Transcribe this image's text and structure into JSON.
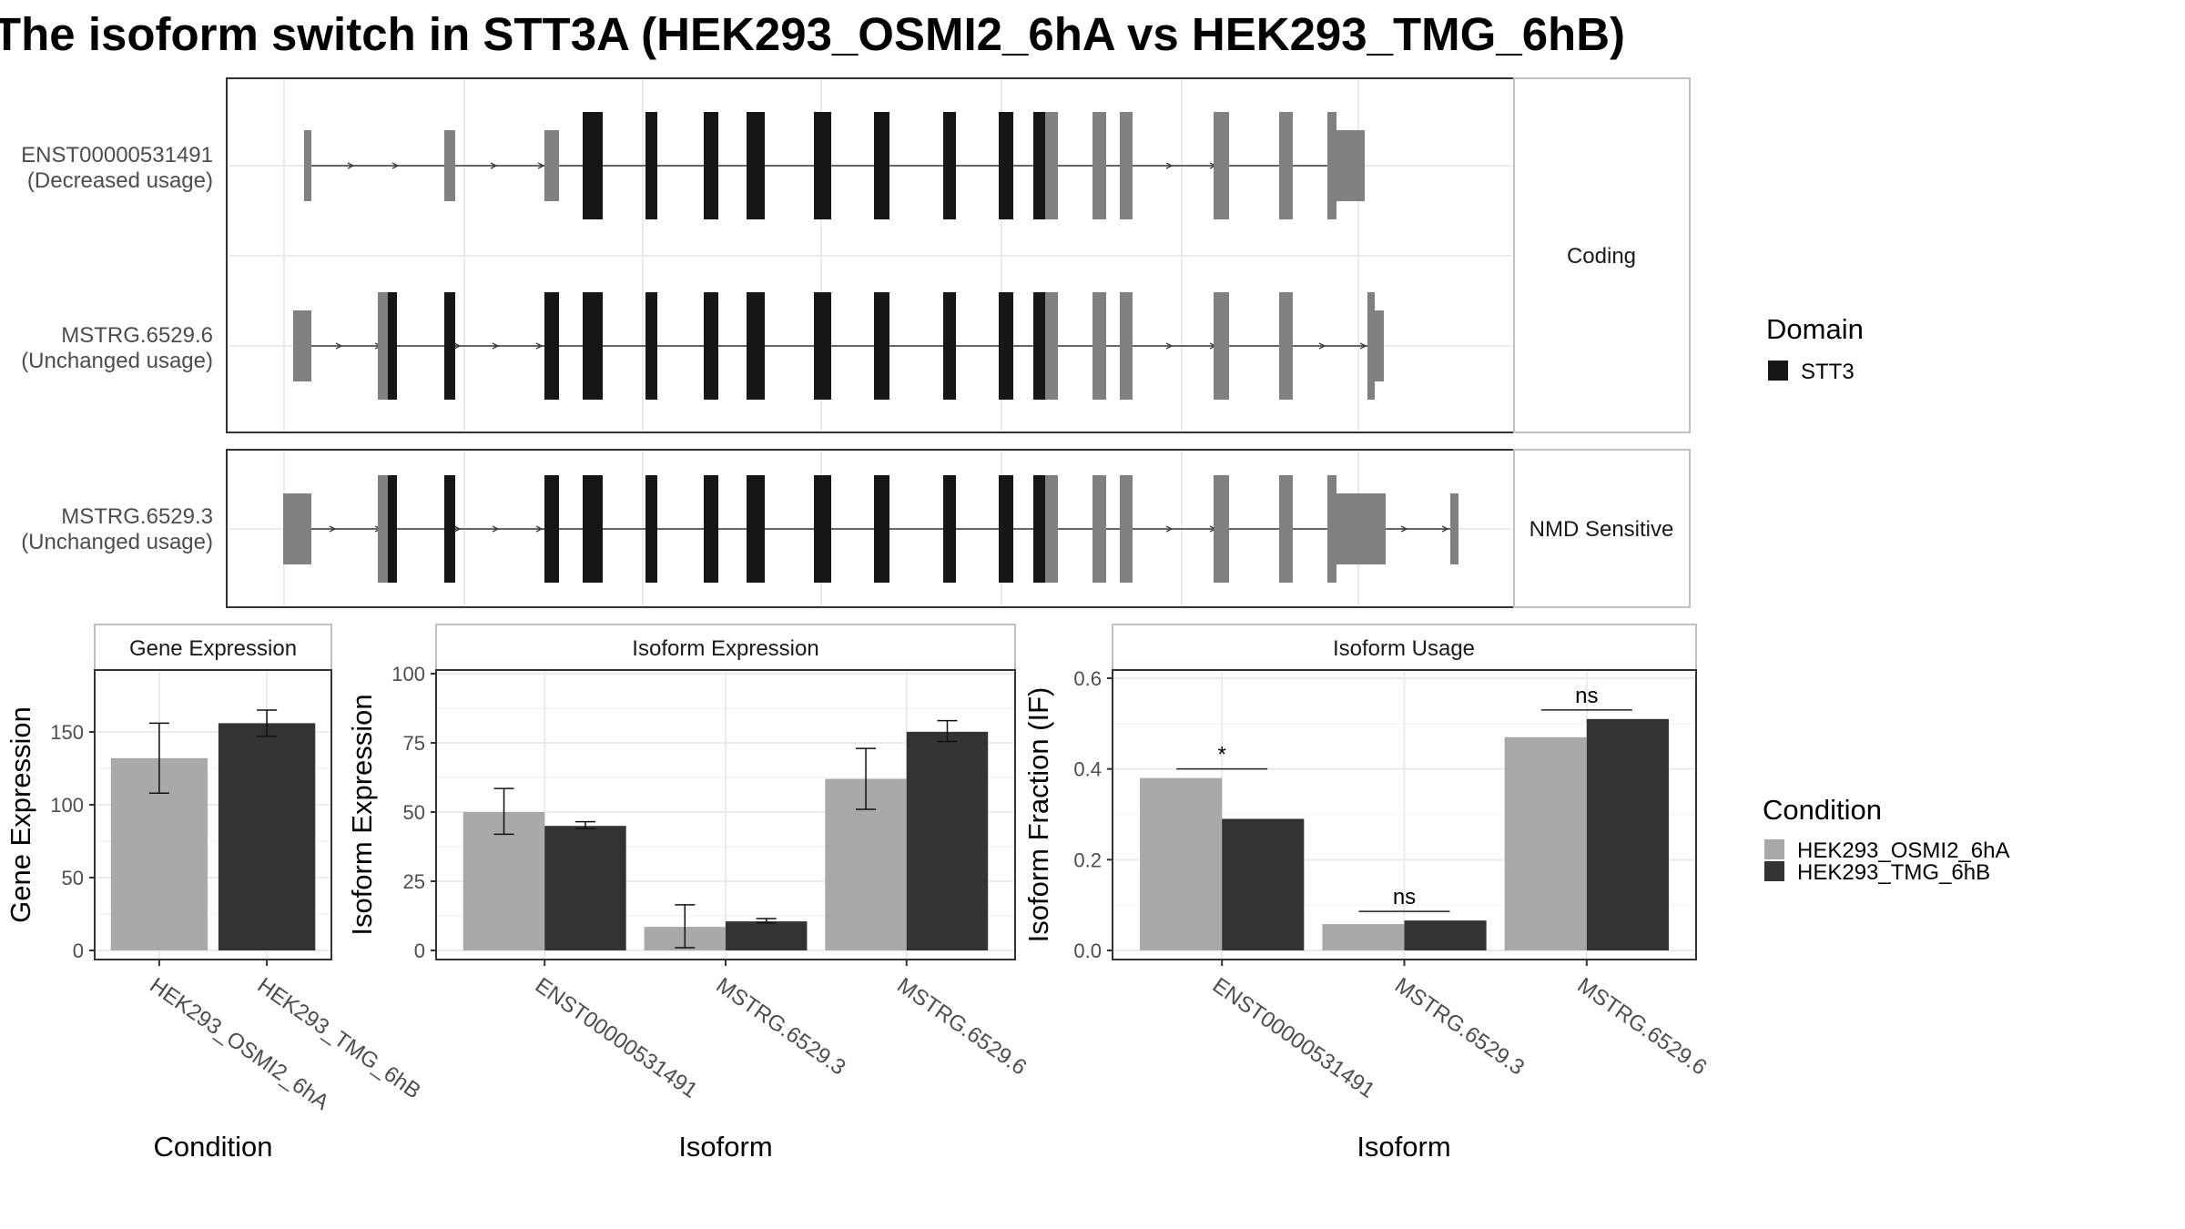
{
  "title": "The isoform switch in STT3A (HEK293_OSMI2_6hA vs HEK293_TMG_6hB)",
  "colors": {
    "cond_a": "#a9a9a9",
    "cond_b": "#333333",
    "exon_noncoding": "#808080",
    "domain": "#161616",
    "grid": "#ebebeb",
    "panel_border": "#333333",
    "strip_border": "#c0c0c0"
  },
  "transcript_plot": {
    "groups": [
      {
        "label": "Coding",
        "tracks": [
          {
            "id": "ENST00000531491",
            "usage": "(Decreased usage)"
          },
          {
            "id": "MSTRG.6529.6",
            "usage": "(Unchanged usage)"
          }
        ]
      },
      {
        "label": "NMD Sensitive",
        "tracks": [
          {
            "id": "MSTRG.6529.3",
            "usage": "(Unchanged usage)"
          }
        ]
      }
    ],
    "domain_legend": {
      "title": "Domain",
      "items": [
        "STT3"
      ]
    }
  },
  "condition_legend": {
    "title": "Condition",
    "items": [
      "HEK293_OSMI2_6hA",
      "HEK293_TMG_6hB"
    ]
  },
  "chart_data": [
    {
      "type": "bar",
      "title": "Gene Expression",
      "xlabel": "Condition",
      "ylabel": "Gene Expression",
      "categories": [
        "HEK293_OSMI2_6hA",
        "HEK293_TMG_6hB"
      ],
      "values": [
        132,
        156
      ],
      "error_low": [
        108,
        147
      ],
      "error_high": [
        156,
        165
      ],
      "ylim": [
        0,
        190
      ],
      "yticks": [
        0,
        50,
        100,
        150
      ],
      "grid": true
    },
    {
      "type": "bar",
      "title": "Isoform Expression",
      "xlabel": "Isoform",
      "ylabel": "Isoform Expression",
      "categories": [
        "ENST00000531491",
        "MSTRG.6529.3",
        "MSTRG.6529.6"
      ],
      "series": [
        {
          "name": "HEK293_OSMI2_6hA",
          "values": [
            50,
            8.5,
            62
          ],
          "error_low": [
            42,
            1,
            51
          ],
          "error_high": [
            58.5,
            16.5,
            73
          ]
        },
        {
          "name": "HEK293_TMG_6hB",
          "values": [
            45,
            10.5,
            79
          ],
          "error_low": [
            44,
            10,
            75.5
          ],
          "error_high": [
            46.5,
            11.5,
            83
          ]
        }
      ],
      "ylim": [
        0,
        100
      ],
      "yticks": [
        0,
        25,
        50,
        75,
        100
      ],
      "grid": true
    },
    {
      "type": "bar",
      "title": "Isoform Usage",
      "xlabel": "Isoform",
      "ylabel": "Isoform Fraction (IF)",
      "categories": [
        "ENST00000531491",
        "MSTRG.6529.3",
        "MSTRG.6529.6"
      ],
      "series": [
        {
          "name": "HEK293_OSMI2_6hA",
          "values": [
            0.38,
            0.058,
            0.47
          ]
        },
        {
          "name": "HEK293_TMG_6hB",
          "values": [
            0.29,
            0.066,
            0.51
          ]
        }
      ],
      "significance": [
        "*",
        "ns",
        "ns"
      ],
      "ylim": [
        0,
        0.61
      ],
      "yticks": [
        "0.0",
        "0.2",
        "0.4",
        "0.6"
      ],
      "grid": true
    }
  ]
}
